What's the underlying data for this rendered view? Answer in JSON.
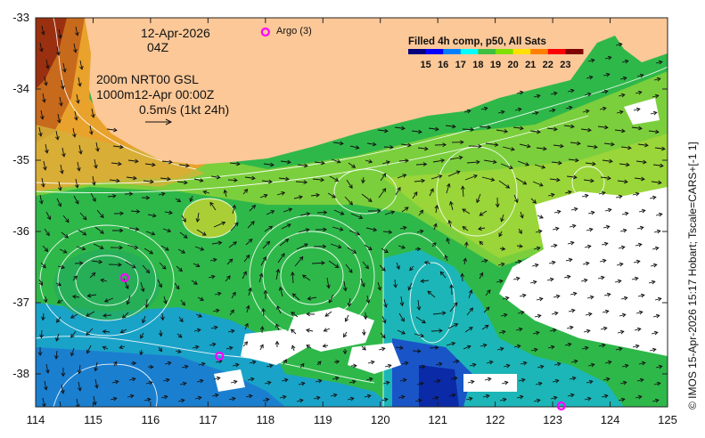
{
  "map": {
    "date_label": "12-Apr-2026",
    "time_label": "04Z",
    "depth_line1": "200m  NRT00 GSL",
    "depth_line2": "1000m12-Apr 00:00Z",
    "vector_scale_label": "0.5m/s (1kt 24h)",
    "argo_label": "Argo (3)",
    "argo_count": 3,
    "argo_floats": [
      {
        "lon": 115.55,
        "lat": -36.65
      },
      {
        "lon": 117.2,
        "lat": -37.75
      },
      {
        "lon": 123.15,
        "lat": -38.45
      }
    ],
    "argo_legend_marker_lon": 118.0,
    "argo_legend_marker_lat": -33.2,
    "colorbar": {
      "title": "Filled 4h comp, p50, All Sats",
      "ticks": [
        "15",
        "16",
        "17",
        "18",
        "19",
        "20",
        "21",
        "22",
        "23"
      ],
      "colors": [
        "#00007f",
        "#0000ff",
        "#0080ff",
        "#00ffff",
        "#40c040",
        "#80e000",
        "#ffe000",
        "#ff8000",
        "#ff0000",
        "#7f0000"
      ]
    },
    "credit": "© IMOS 15-Apr-2026 15:17 Hobart; Tscale=CARS+[-1 1]",
    "x_ticks": [
      "114",
      "115",
      "116",
      "117",
      "118",
      "119",
      "120",
      "121",
      "122",
      "123",
      "124",
      "125"
    ],
    "y_ticks": [
      "-33",
      "-34",
      "-35",
      "-36",
      "-37",
      "-38"
    ],
    "x_range": [
      114,
      125
    ],
    "y_range": [
      -38.5,
      -33
    ],
    "land_color": "#fcc898",
    "cloud_color": "#ffffff"
  }
}
